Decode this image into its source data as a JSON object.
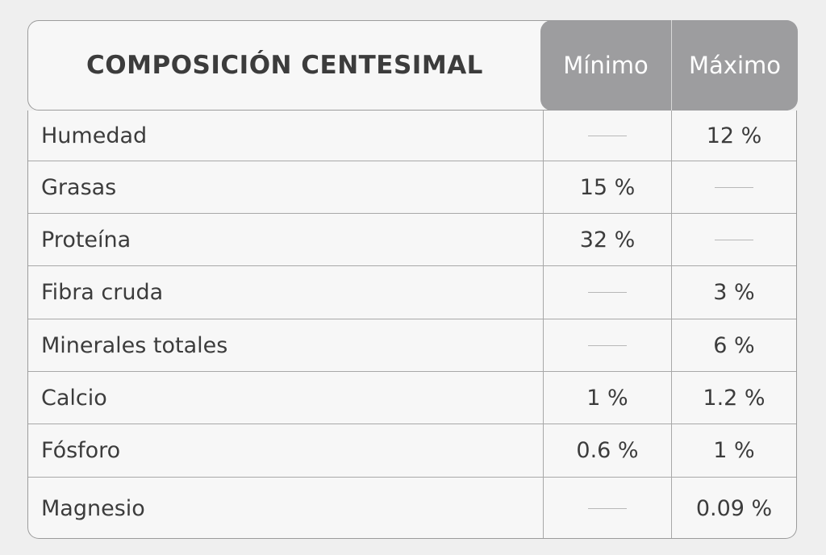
{
  "table": {
    "title": "COMPOSICIÓN CENTESIMAL",
    "col_min": "Mínimo",
    "col_max": "Máximo",
    "dash": "—",
    "rows": [
      {
        "label": "Humedad",
        "min": "",
        "max": "12 %"
      },
      {
        "label": "Grasas",
        "min": "15 %",
        "max": ""
      },
      {
        "label": "Proteína",
        "min": "32 %",
        "max": ""
      },
      {
        "label": "Fibra cruda",
        "min": "",
        "max": "3 %"
      },
      {
        "label": "Minerales totales",
        "min": "",
        "max": "6 %"
      },
      {
        "label": "Calcio",
        "min": "1 %",
        "max": "1.2 %"
      },
      {
        "label": "Fósforo",
        "min": "0.6 %",
        "max": "1 %"
      },
      {
        "label": "Magnesio",
        "min": "",
        "max": "0.09 %"
      }
    ]
  },
  "colors": {
    "background": "#efefef",
    "header_accent": "#9d9d9f",
    "text": "#3c3c3c",
    "border": "#a8a8a8"
  }
}
